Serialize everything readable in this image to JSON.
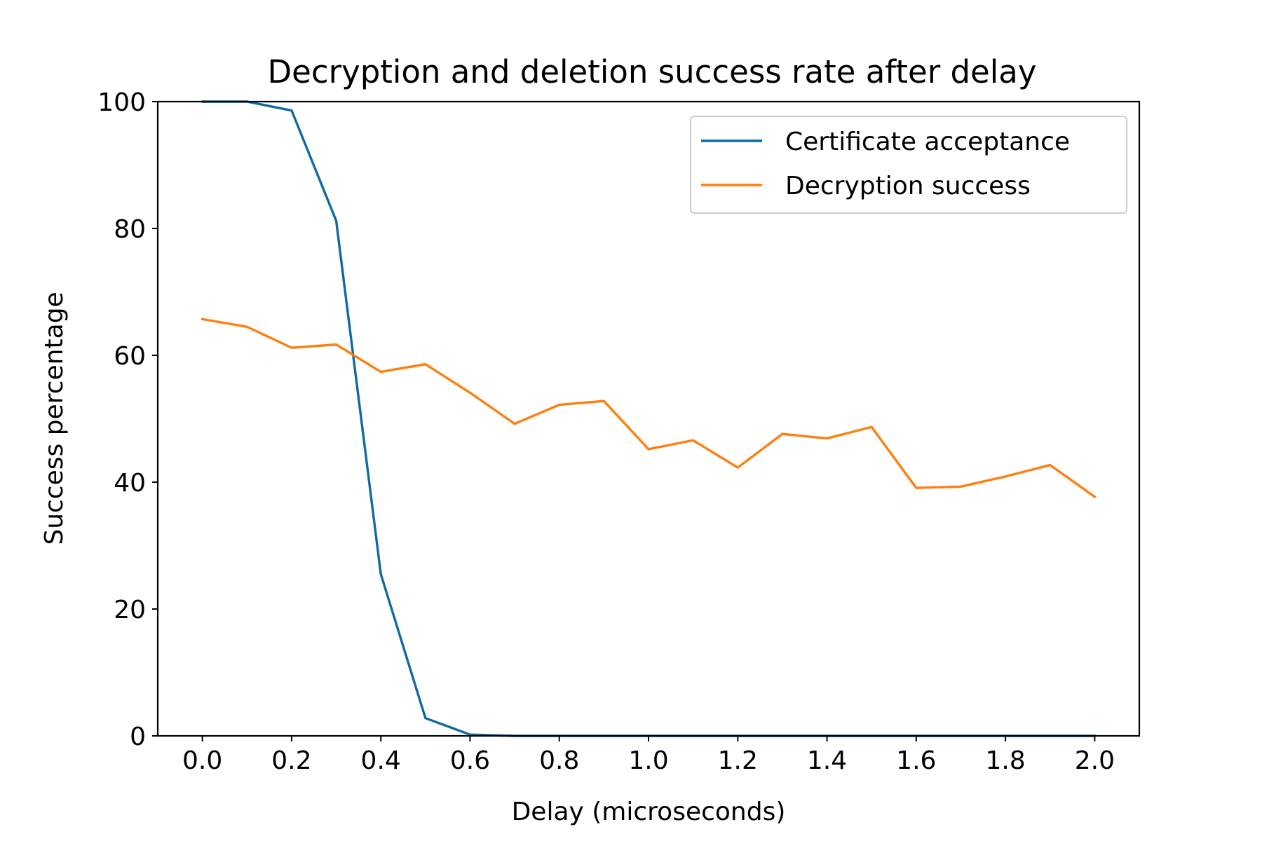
{
  "chart_data": {
    "type": "line",
    "title": "Decryption and deletion success rate after delay",
    "xlabel": "Delay (microseconds)",
    "ylabel": "Success percentage",
    "x": [
      0.0,
      0.1,
      0.2,
      0.3,
      0.4,
      0.5,
      0.6,
      0.7,
      0.8,
      0.9,
      1.0,
      1.1,
      1.2,
      1.3,
      1.4,
      1.5,
      1.6,
      1.7,
      1.8,
      1.9,
      2.0
    ],
    "xlim": [
      -0.1,
      2.1
    ],
    "ylim": [
      0,
      100
    ],
    "xticks": [
      "0.0",
      "0.2",
      "0.4",
      "0.6",
      "0.8",
      "1.0",
      "1.2",
      "1.4",
      "1.6",
      "1.8",
      "2.0"
    ],
    "xtick_values": [
      0.0,
      0.2,
      0.4,
      0.6,
      0.8,
      1.0,
      1.2,
      1.4,
      1.6,
      1.8,
      2.0
    ],
    "yticks": [
      "0",
      "20",
      "40",
      "60",
      "80",
      "100"
    ],
    "ytick_values": [
      0,
      20,
      40,
      60,
      80,
      100
    ],
    "grid": false,
    "legend_position": "top-right",
    "series": [
      {
        "name": "Certificate acceptance",
        "color": "#0f6aa3",
        "values": [
          100,
          100,
          98.6,
          81.2,
          25.5,
          2.8,
          0.2,
          0,
          0,
          0,
          0,
          0,
          0,
          0,
          0,
          0,
          0,
          0,
          0,
          0,
          0
        ]
      },
      {
        "name": "Decryption success",
        "color": "#ff7f0e",
        "values": [
          65.7,
          64.5,
          61.2,
          61.7,
          57.4,
          58.6,
          54.1,
          49.2,
          52.2,
          52.8,
          45.2,
          46.6,
          42.3,
          47.6,
          46.9,
          48.7,
          39.1,
          39.3,
          40.9,
          42.7,
          37.7
        ]
      }
    ]
  }
}
